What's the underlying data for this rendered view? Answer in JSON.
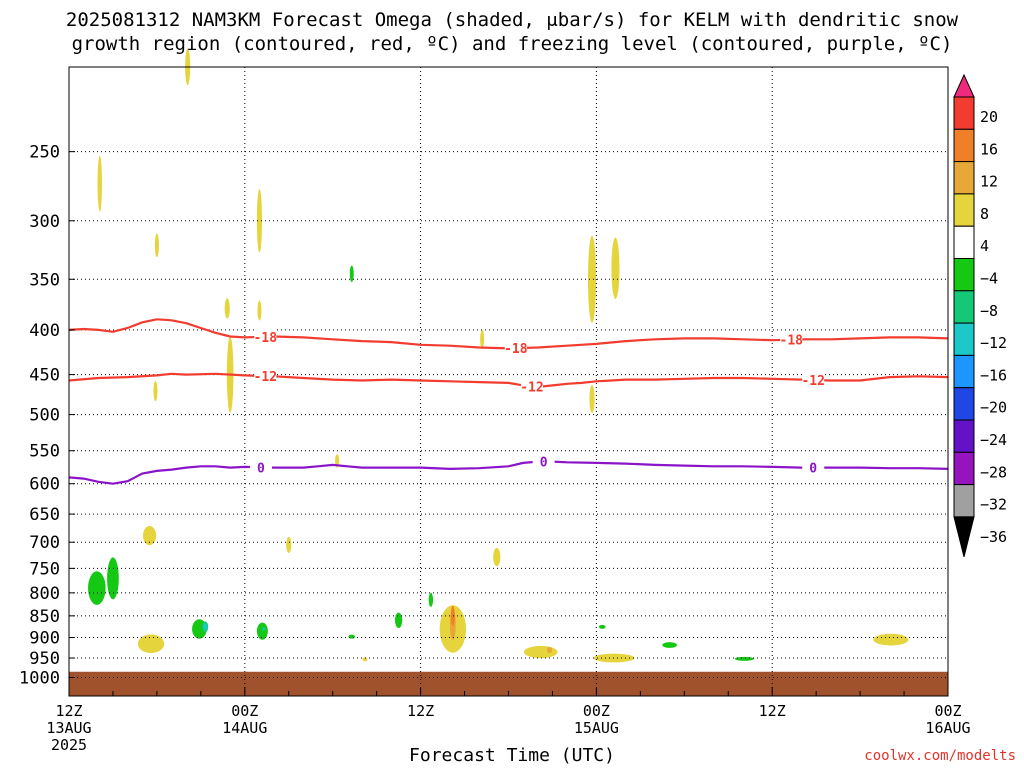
{
  "title_line1": "2025081312 NAM3KM Forecast Omega (shaded, μbar/s) for KELM with dendritic snow",
  "title_line2": "growth region (contoured, red, ºC) and freezing level (contoured, purple, ºC)",
  "credit": "coolwx.com/modelts",
  "chart_data": {
    "type": "heatmap",
    "title": "2025081312 NAM3KM Forecast Omega (shaded, μbar/s) for KELM with dendritic snow growth region (contoured, red, ºC) and freezing level (contoured, purple, ºC)",
    "xlabel": "Forecast Time (UTC)",
    "ylabel": "",
    "x_range_hours": [
      0,
      60
    ],
    "x_ticks": [
      {
        "hour": 0,
        "lines": [
          "12Z",
          "13AUG",
          "2025"
        ]
      },
      {
        "hour": 12,
        "lines": [
          "00Z",
          "14AUG"
        ]
      },
      {
        "hour": 24,
        "lines": [
          "12Z"
        ]
      },
      {
        "hour": 36,
        "lines": [
          "00Z",
          "15AUG"
        ]
      },
      {
        "hour": 48,
        "lines": [
          "12Z"
        ]
      },
      {
        "hour": 60,
        "lines": [
          "00Z",
          "16AUG"
        ]
      }
    ],
    "y_scale": "log pressure (hPa), reversed",
    "y_range": [
      1050,
      200
    ],
    "y_ticks": [
      250,
      300,
      350,
      400,
      450,
      500,
      550,
      600,
      650,
      700,
      750,
      800,
      850,
      900,
      950,
      1000
    ],
    "grid": true,
    "colorbar": {
      "labels": [
        "20",
        "16",
        "12",
        "8",
        "4",
        "−4",
        "−8",
        "−12",
        "−16",
        "−20",
        "−24",
        "−28",
        "−32",
        "−36"
      ],
      "colors": [
        "#f0287e",
        "#f23c30",
        "#f07f2a",
        "#e8a838",
        "#e5d43c",
        "#ffffff",
        "#14c814",
        "#14c878",
        "#1cc8c8",
        "#1e96ff",
        "#2046e6",
        "#6412c8",
        "#9614be",
        "#a0a0a0",
        "#000000"
      ]
    },
    "ground_color": "#a0522d",
    "omega_regions": [
      {
        "category": "4",
        "hour": 8.1,
        "p": 200,
        "dh": 0.35,
        "dp": 40
      },
      {
        "category": "4",
        "hour": 2.1,
        "p": 272,
        "dh": 0.3,
        "dp": 40
      },
      {
        "category": "4",
        "hour": 6.0,
        "p": 320,
        "dh": 0.2,
        "dp": 20
      },
      {
        "category": "4",
        "hour": 13.0,
        "p": 300,
        "dh": 0.35,
        "dp": 50
      },
      {
        "category": "4",
        "hour": 13.0,
        "p": 380,
        "dh": 0.15,
        "dp": 20
      },
      {
        "category": "4",
        "hour": 11.0,
        "p": 450,
        "dh": 0.45,
        "dp": 90
      },
      {
        "category": "4",
        "hour": 10.8,
        "p": 378,
        "dh": 0.35,
        "dp": 20
      },
      {
        "category": "4",
        "hour": 5.9,
        "p": 470,
        "dh": 0.25,
        "dp": 25
      },
      {
        "category": "4",
        "hour": 18.3,
        "p": 565,
        "dh": 0.18,
        "dp": 20
      },
      {
        "category": "4",
        "hour": 28.2,
        "p": 410,
        "dh": 0.2,
        "dp": 20
      },
      {
        "category": "4",
        "hour": 35.7,
        "p": 350,
        "dh": 0.55,
        "dp": 80
      },
      {
        "category": "4",
        "hour": 35.7,
        "p": 480,
        "dh": 0.35,
        "dp": 35
      },
      {
        "category": "4",
        "hour": 37.3,
        "p": 340,
        "dh": 0.55,
        "dp": 55
      },
      {
        "category": "4",
        "hour": 5.5,
        "p": 688,
        "dh": 0.9,
        "dp": 35
      },
      {
        "category": "4",
        "hour": 15.0,
        "p": 705,
        "dh": 0.35,
        "dp": 30
      },
      {
        "category": "4",
        "hour": 29.2,
        "p": 728,
        "dh": 0.5,
        "dp": 35
      },
      {
        "category": "4",
        "hour": 5.6,
        "p": 915,
        "dh": 1.8,
        "dp": 45
      },
      {
        "category": "4",
        "hour": 26.2,
        "p": 880,
        "dh": 1.8,
        "dp": 110
      },
      {
        "category": "4",
        "hour": 32.2,
        "p": 935,
        "dh": 2.3,
        "dp": 30
      },
      {
        "category": "4",
        "hour": 37.2,
        "p": 950,
        "dh": 2.8,
        "dp": 22
      },
      {
        "category": "4",
        "hour": 56.1,
        "p": 905,
        "dh": 2.4,
        "dp": 28
      },
      {
        "category": "4",
        "hour": 20.2,
        "p": 953,
        "dh": 0.35,
        "dp": 5
      },
      {
        "category": "8",
        "hour": 26.2,
        "p": 870,
        "dh": 0.4,
        "dp": 70
      },
      {
        "category": "8",
        "hour": 32.8,
        "p": 930,
        "dh": 0.35,
        "dp": 15
      },
      {
        "category": "12",
        "hour": 26.2,
        "p": 850,
        "dh": 0.25,
        "dp": 45
      },
      {
        "category": "−4",
        "hour": 1.9,
        "p": 790,
        "dh": 1.2,
        "dp": 70
      },
      {
        "category": "−4",
        "hour": 3.0,
        "p": 770,
        "dh": 0.8,
        "dp": 85
      },
      {
        "category": "−4",
        "hour": 8.9,
        "p": 880,
        "dh": 1.0,
        "dp": 45
      },
      {
        "category": "−4",
        "hour": 13.2,
        "p": 885,
        "dh": 0.75,
        "dp": 40
      },
      {
        "category": "−4",
        "hour": 19.3,
        "p": 345,
        "dh": 0.12,
        "dp": 15
      },
      {
        "category": "−4",
        "hour": 19.3,
        "p": 898,
        "dh": 0.45,
        "dp": 5
      },
      {
        "category": "−4",
        "hour": 22.5,
        "p": 860,
        "dh": 0.5,
        "dp": 35
      },
      {
        "category": "−4",
        "hour": 24.7,
        "p": 815,
        "dh": 0.3,
        "dp": 30
      },
      {
        "category": "−4",
        "hour": 36.4,
        "p": 875,
        "dh": 0.45,
        "dp": 5
      },
      {
        "category": "−4",
        "hour": 41.0,
        "p": 918,
        "dh": 1.0,
        "dp": 14
      },
      {
        "category": "−4",
        "hour": 46.1,
        "p": 952,
        "dh": 1.3,
        "dp": 5
      },
      {
        "category": "−8",
        "hour": 9.3,
        "p": 875,
        "dh": 0.4,
        "dp": 25
      },
      {
        "category": "−8",
        "hour": 13.3,
        "p": 880,
        "dh": 0.3,
        "dp": 10
      },
      {
        "category": "−12",
        "hour": 9.3,
        "p": 875,
        "dh": 0.25,
        "dp": 15
      }
    ],
    "contours": [
      {
        "name": "-18",
        "color": "#f23c30",
        "labels_at_hours": [
          13.4,
          30.5,
          49.3
        ],
        "points": [
          [
            0,
            400
          ],
          [
            1,
            399
          ],
          [
            2,
            400
          ],
          [
            3,
            402
          ],
          [
            4,
            398
          ],
          [
            5,
            392
          ],
          [
            6,
            389
          ],
          [
            7,
            390
          ],
          [
            8,
            393
          ],
          [
            9,
            398
          ],
          [
            10,
            403
          ],
          [
            11,
            407
          ],
          [
            12,
            408
          ],
          [
            14,
            407
          ],
          [
            16,
            408
          ],
          [
            18,
            410
          ],
          [
            20,
            412
          ],
          [
            22,
            413
          ],
          [
            24,
            416
          ],
          [
            26,
            417
          ],
          [
            28,
            419
          ],
          [
            30,
            420
          ],
          [
            32,
            419
          ],
          [
            34,
            417
          ],
          [
            36,
            415
          ],
          [
            38,
            412
          ],
          [
            40,
            410
          ],
          [
            42,
            409
          ],
          [
            44,
            409
          ],
          [
            46,
            410
          ],
          [
            48,
            411
          ],
          [
            50,
            410
          ],
          [
            52,
            410
          ],
          [
            54,
            409
          ],
          [
            56,
            408
          ],
          [
            58,
            408
          ],
          [
            60,
            409
          ]
        ]
      },
      {
        "name": "-12",
        "color": "#f23c30",
        "labels_at_hours": [
          13.4,
          31.6,
          50.8
        ],
        "points": [
          [
            0,
            457
          ],
          [
            2,
            454
          ],
          [
            4,
            453
          ],
          [
            6,
            451
          ],
          [
            7,
            449
          ],
          [
            8,
            450
          ],
          [
            10,
            449
          ],
          [
            12,
            451
          ],
          [
            14,
            452
          ],
          [
            16,
            454
          ],
          [
            18,
            456
          ],
          [
            20,
            457
          ],
          [
            22,
            456
          ],
          [
            24,
            457
          ],
          [
            26,
            458
          ],
          [
            28,
            459
          ],
          [
            30,
            460
          ],
          [
            31,
            463
          ],
          [
            32,
            465
          ],
          [
            33,
            463
          ],
          [
            34,
            461
          ],
          [
            35,
            460
          ],
          [
            36,
            458
          ],
          [
            37,
            457
          ],
          [
            38,
            456
          ],
          [
            40,
            456
          ],
          [
            42,
            455
          ],
          [
            44,
            454
          ],
          [
            46,
            454
          ],
          [
            48,
            455
          ],
          [
            50,
            456
          ],
          [
            52,
            457
          ],
          [
            54,
            457
          ],
          [
            56,
            453
          ],
          [
            58,
            452
          ],
          [
            60,
            453
          ]
        ]
      },
      {
        "name": "0",
        "color": "#8c14c8",
        "labels_at_hours": [
          13.1,
          32.4,
          50.8
        ],
        "points": [
          [
            0,
            590
          ],
          [
            1,
            592
          ],
          [
            2,
            597
          ],
          [
            3,
            600
          ],
          [
            4,
            596
          ],
          [
            5,
            584
          ],
          [
            6,
            580
          ],
          [
            7,
            578
          ],
          [
            8,
            575
          ],
          [
            9,
            573
          ],
          [
            10,
            573
          ],
          [
            11,
            575
          ],
          [
            12,
            574
          ],
          [
            14,
            575
          ],
          [
            16,
            575
          ],
          [
            17,
            573
          ],
          [
            18,
            571
          ],
          [
            19,
            573
          ],
          [
            20,
            575
          ],
          [
            22,
            575
          ],
          [
            24,
            575
          ],
          [
            26,
            577
          ],
          [
            28,
            576
          ],
          [
            30,
            573
          ],
          [
            31,
            568
          ],
          [
            32,
            566
          ],
          [
            33,
            566
          ],
          [
            34,
            567
          ],
          [
            36,
            568
          ],
          [
            38,
            569
          ],
          [
            40,
            571
          ],
          [
            42,
            572
          ],
          [
            44,
            573
          ],
          [
            46,
            573
          ],
          [
            48,
            574
          ],
          [
            50,
            575
          ],
          [
            52,
            575
          ],
          [
            54,
            575
          ],
          [
            56,
            576
          ],
          [
            58,
            576
          ],
          [
            60,
            577
          ]
        ]
      }
    ]
  }
}
